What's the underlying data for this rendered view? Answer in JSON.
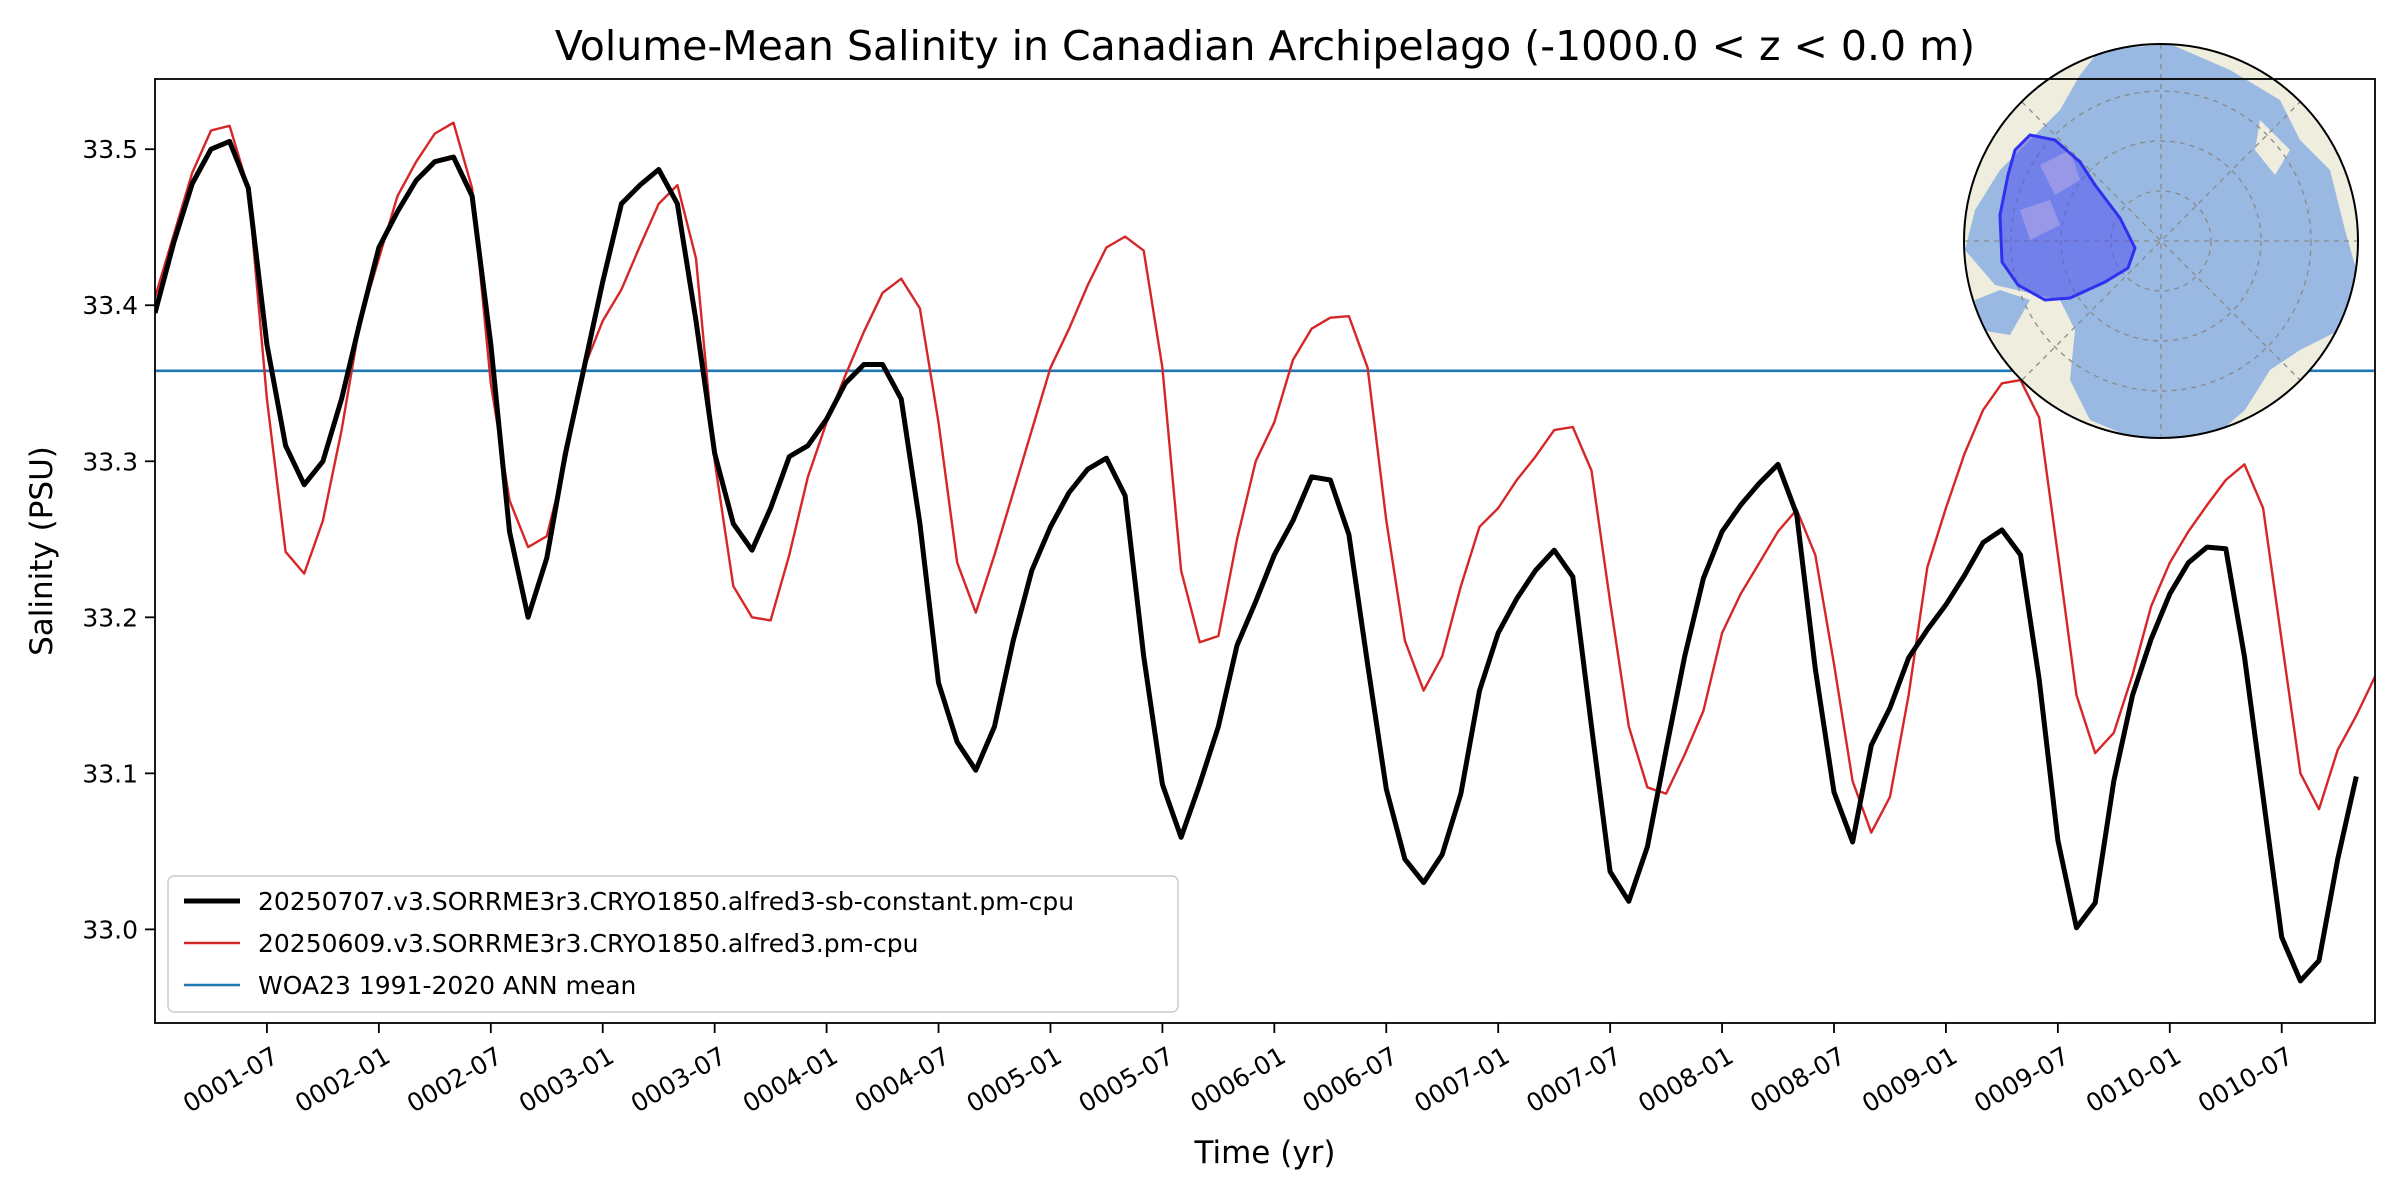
{
  "chart_data": {
    "type": "line",
    "title": "Volume-Mean Salinity in Canadian Archipelago (-1000.0 < z < 0.0 m)",
    "xlabel": "Time (yr)",
    "ylabel": "Salinity (PSU)",
    "ylim": [
      32.94,
      33.545
    ],
    "xlim_months": [
      0,
      119
    ],
    "x_first_label": "0001-01",
    "x_step": "1 month",
    "x_tick_labels": [
      "0001-07",
      "0002-01",
      "0002-07",
      "0003-01",
      "0003-07",
      "0004-01",
      "0004-07",
      "0005-01",
      "0005-07",
      "0006-01",
      "0006-07",
      "0007-01",
      "0007-07",
      "0008-01",
      "0008-07",
      "0009-01",
      "0009-07",
      "0010-01",
      "0010-07"
    ],
    "y_ticks": [
      33.0,
      33.1,
      33.2,
      33.3,
      33.4,
      33.5
    ],
    "y_tick_labels": [
      "33.0",
      "33.1",
      "33.2",
      "33.3",
      "33.4",
      "33.5"
    ],
    "grid": false,
    "legend_position": "lower-left",
    "series": [
      {
        "name": "20250707.v3.SORRME3r3.CRYO1850.alfred3-sb-constant.pm-cpu",
        "color": "#000000",
        "width": "thick",
        "values": [
          33.395,
          33.44,
          33.478,
          33.5,
          33.505,
          33.475,
          33.375,
          33.31,
          33.285,
          33.3,
          33.34,
          33.39,
          33.437,
          33.46,
          33.48,
          33.492,
          33.495,
          33.47,
          33.375,
          33.255,
          33.2,
          33.238,
          33.305,
          33.36,
          33.415,
          33.465,
          33.477,
          33.487,
          33.465,
          33.39,
          33.305,
          33.26,
          33.243,
          33.27,
          33.303,
          33.31,
          33.327,
          33.35,
          33.362,
          33.362,
          33.34,
          33.26,
          33.158,
          33.12,
          33.102,
          33.13,
          33.185,
          33.23,
          33.258,
          33.28,
          33.295,
          33.302,
          33.278,
          33.175,
          33.093,
          33.059,
          33.093,
          33.13,
          33.182,
          33.21,
          33.24,
          33.262,
          33.29,
          33.288,
          33.253,
          33.17,
          33.09,
          33.045,
          33.03,
          33.048,
          33.087,
          33.153,
          33.19,
          33.212,
          33.23,
          33.243,
          33.226,
          33.13,
          33.037,
          33.018,
          33.053,
          33.115,
          33.175,
          33.225,
          33.255,
          33.272,
          33.286,
          33.298,
          33.266,
          33.167,
          33.088,
          33.056,
          33.118,
          33.142,
          33.174,
          33.192,
          33.208,
          33.227,
          33.248,
          33.256,
          33.24,
          33.16,
          33.057,
          33.001,
          33.017,
          33.095,
          33.15,
          33.186,
          33.215,
          33.235,
          33.245,
          33.244,
          33.175,
          33.085,
          32.995,
          32.967,
          32.98,
          33.045,
          33.098
        ]
      },
      {
        "name": "20250609.v3.SORRME3r3.CRYO1850.alfred3.pm-cpu",
        "color": "#d62728",
        "width": "thin",
        "values": [
          33.405,
          33.445,
          33.485,
          33.512,
          33.515,
          33.475,
          33.34,
          33.242,
          33.228,
          33.262,
          33.32,
          33.39,
          33.43,
          33.47,
          33.492,
          33.51,
          33.517,
          33.475,
          33.35,
          33.275,
          33.245,
          33.252,
          33.3,
          33.36,
          33.39,
          33.41,
          33.438,
          33.465,
          33.477,
          33.43,
          33.3,
          33.22,
          33.2,
          33.198,
          33.24,
          33.29,
          33.325,
          33.355,
          33.383,
          33.408,
          33.417,
          33.398,
          33.325,
          33.235,
          33.203,
          33.24,
          33.28,
          33.32,
          33.36,
          33.385,
          33.413,
          33.437,
          33.444,
          33.435,
          33.36,
          33.23,
          33.184,
          33.188,
          33.25,
          33.3,
          33.325,
          33.365,
          33.385,
          33.392,
          33.393,
          33.36,
          33.262,
          33.185,
          33.153,
          33.175,
          33.22,
          33.258,
          33.27,
          33.288,
          33.303,
          33.32,
          33.322,
          33.294,
          33.21,
          33.13,
          33.091,
          33.087,
          33.112,
          33.14,
          33.19,
          33.215,
          33.235,
          33.255,
          33.269,
          33.24,
          33.17,
          33.095,
          33.062,
          33.085,
          33.15,
          33.232,
          33.27,
          33.305,
          33.333,
          33.35,
          33.352,
          33.328,
          33.24,
          33.15,
          33.113,
          33.126,
          33.163,
          33.207,
          33.235,
          33.255,
          33.272,
          33.288,
          33.298,
          33.27,
          33.185,
          33.1,
          33.077,
          33.115,
          33.137,
          33.162
        ]
      },
      {
        "name": "WOA23 1991-2020 ANN mean",
        "color": "#1f77b4",
        "width": "medium",
        "constant": 33.358
      }
    ]
  },
  "inset_map": {
    "icon": "north-polar-map-icon",
    "ocean_color": "#99b8e2",
    "land_color": "#efedde",
    "region_color": "#5252f0",
    "region_name": "Canadian Archipelago"
  }
}
